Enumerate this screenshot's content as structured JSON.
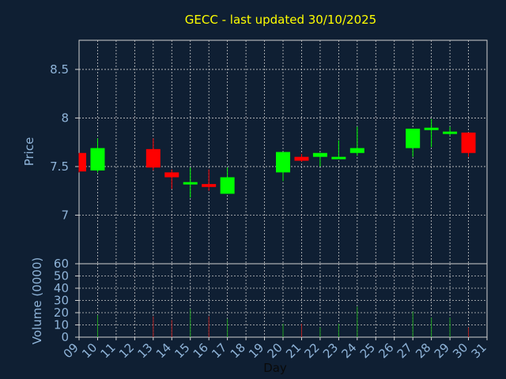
{
  "chart_data": {
    "type": "candlestick",
    "title": "GECC - last updated 30/10/2025",
    "xlabel": "Day",
    "ylabel_price": "Price",
    "ylabel_volume": "Volume (0000)",
    "x_ticks": [
      "09",
      "10",
      "11",
      "12",
      "13",
      "14",
      "15",
      "16",
      "17",
      "18",
      "19",
      "20",
      "21",
      "22",
      "23",
      "24",
      "25",
      "26",
      "27",
      "28",
      "29",
      "30",
      "31"
    ],
    "price_ticks": [
      "7",
      "7.5",
      "8",
      "8.5"
    ],
    "price_range": [
      6.5,
      8.8
    ],
    "volume_ticks": [
      "0",
      "10",
      "20",
      "30",
      "40",
      "50",
      "60"
    ],
    "volume_range": [
      0,
      60
    ],
    "grid": true,
    "colors": {
      "background": "#0f1f33",
      "up": "#00ff00",
      "down": "#ff0000",
      "grid": "#c8c8c8",
      "title": "#ffff00",
      "axis_text": "#8fb4d9",
      "volume_up": "#20a020",
      "volume_down": "#b02020"
    },
    "candles": [
      {
        "day": 9,
        "open": 7.64,
        "high": 7.64,
        "low": 7.44,
        "close": 7.45,
        "volume": 0
      },
      {
        "day": 10,
        "open": 7.46,
        "high": 7.79,
        "low": 7.44,
        "close": 7.69,
        "volume": 18
      },
      {
        "day": 13,
        "open": 7.68,
        "high": 7.79,
        "low": 7.46,
        "close": 7.49,
        "volume": 17
      },
      {
        "day": 14,
        "open": 7.44,
        "high": 7.47,
        "low": 7.27,
        "close": 7.39,
        "volume": 14
      },
      {
        "day": 15,
        "open": 7.33,
        "high": 7.49,
        "low": 7.18,
        "close": 7.34,
        "volume": 23
      },
      {
        "day": 16,
        "open": 7.32,
        "high": 7.47,
        "low": 7.25,
        "close": 7.29,
        "volume": 17
      },
      {
        "day": 17,
        "open": 7.22,
        "high": 7.49,
        "low": 7.22,
        "close": 7.39,
        "volume": 15
      },
      {
        "day": 20,
        "open": 7.44,
        "high": 7.65,
        "low": 7.35,
        "close": 7.65,
        "volume": 11
      },
      {
        "day": 21,
        "open": 7.6,
        "high": 7.63,
        "low": 7.55,
        "close": 7.56,
        "volume": 11
      },
      {
        "day": 22,
        "open": 7.6,
        "high": 7.64,
        "low": 7.5,
        "close": 7.64,
        "volume": 8
      },
      {
        "day": 23,
        "open": 7.59,
        "high": 7.77,
        "low": 7.59,
        "close": 7.6,
        "volume": 11
      },
      {
        "day": 24,
        "open": 7.64,
        "high": 7.91,
        "low": 7.61,
        "close": 7.69,
        "volume": 25
      },
      {
        "day": 27,
        "open": 7.69,
        "high": 7.89,
        "low": 7.6,
        "close": 7.89,
        "volume": 21
      },
      {
        "day": 28,
        "open": 7.88,
        "high": 7.99,
        "low": 7.7,
        "close": 7.9,
        "volume": 16
      },
      {
        "day": 29,
        "open": 7.85,
        "high": 7.91,
        "low": 7.82,
        "close": 7.86,
        "volume": 16
      },
      {
        "day": 30,
        "open": 7.85,
        "high": 7.85,
        "low": 7.6,
        "close": 7.64,
        "volume": 8
      }
    ]
  }
}
